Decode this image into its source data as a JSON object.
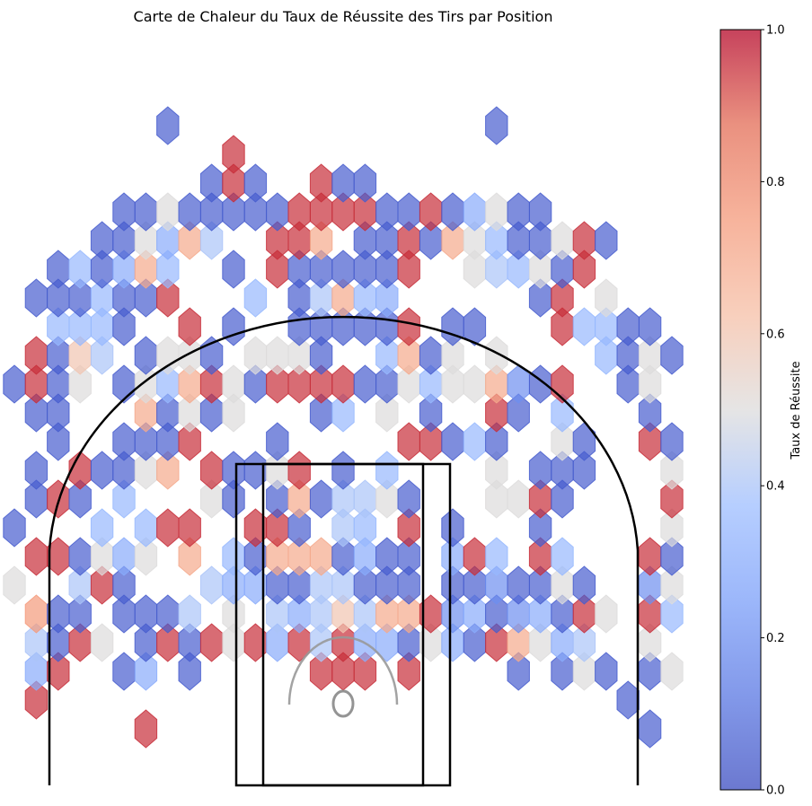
{
  "chart_data": {
    "type": "heatmap",
    "subtype": "hexbin",
    "title": "Carte de Chaleur du Taux de Réussite des Tirs par Position",
    "xlabel": "",
    "ylabel": "",
    "axes_visible": false,
    "grid": false,
    "colormap": "coolwarm",
    "colorbar": {
      "label": "Taux de Réussite",
      "range": [
        0,
        1
      ],
      "ticks": [
        "0.0",
        "0.2",
        "0.4",
        "0.6",
        "0.8",
        "1.0"
      ],
      "placement": "right"
    },
    "columns": [
      -15,
      -14,
      -13,
      -12,
      -11,
      -10,
      -9,
      -8,
      -7,
      -6,
      -5,
      -4,
      -3,
      -2,
      -1,
      0,
      1,
      2,
      3,
      4,
      5,
      6,
      7,
      8,
      9,
      10,
      11,
      12,
      13,
      14,
      15
    ],
    "rows": [
      {
        "y": 0,
        "v": [
          null,
          null,
          null,
          null,
          null,
          null,
          0.95,
          null,
          null,
          null,
          null,
          null,
          null,
          null,
          null,
          null,
          null,
          null,
          null,
          null,
          null,
          null,
          null,
          null,
          null,
          null,
          null,
          null,
          null,
          0.05,
          null
        ]
      },
      {
        "y": 1,
        "v": [
          null,
          0.95,
          null,
          null,
          null,
          null,
          null,
          null,
          null,
          null,
          null,
          null,
          null,
          null,
          null,
          null,
          null,
          null,
          null,
          null,
          null,
          null,
          null,
          null,
          null,
          null,
          null,
          null,
          0.05,
          null,
          null
        ]
      },
      {
        "y": 2,
        "v": [
          null,
          0.3,
          0.95,
          null,
          null,
          0.05,
          0.3,
          null,
          0.05,
          null,
          null,
          null,
          null,
          null,
          0.95,
          0.95,
          0.95,
          null,
          0.95,
          null,
          null,
          null,
          null,
          0.05,
          null,
          0.05,
          0.5,
          0.05,
          null,
          0.05,
          0.5
        ]
      },
      {
        "y": 3,
        "v": [
          null,
          0.4,
          0.05,
          0.95,
          0.5,
          null,
          0.05,
          0.95,
          0.05,
          0.95,
          0.5,
          0.95,
          0.3,
          0.95,
          0.4,
          0.95,
          0.3,
          0.3,
          0.05,
          0.5,
          0.3,
          0.05,
          0.95,
          0.7,
          0.5,
          0.3,
          0.4,
          null,
          null,
          0.5,
          null
        ]
      },
      {
        "y": 4,
        "v": [
          null,
          0.75,
          0.05,
          0.05,
          null,
          0.05,
          0.05,
          0.05,
          0.4,
          null,
          0.5,
          null,
          0.4,
          0.3,
          0.4,
          0.6,
          0.4,
          0.7,
          0.7,
          0.95,
          0.2,
          0.3,
          0.05,
          0.2,
          0.3,
          0.05,
          0.95,
          0.5,
          null,
          0.95,
          0.35
        ]
      },
      {
        "y": 5,
        "v": [
          0.5,
          null,
          null,
          0.4,
          0.95,
          0.05,
          null,
          null,
          null,
          0.4,
          0.3,
          0.3,
          0.05,
          0.05,
          0.4,
          0.4,
          0.05,
          0.05,
          0.05,
          null,
          0.05,
          0.05,
          0.2,
          0.05,
          0.05,
          0.5,
          0.05,
          null,
          null,
          0.2,
          0.5
        ]
      },
      {
        "y": 6,
        "v": [
          null,
          0.95,
          0.95,
          0.05,
          0.5,
          0.3,
          0.5,
          null,
          0.7,
          null,
          0.35,
          0.05,
          0.7,
          0.7,
          0.7,
          0.05,
          0.3,
          0.05,
          0.05,
          null,
          0.3,
          0.95,
          0.35,
          null,
          0.95,
          0.35,
          null,
          null,
          null,
          0.95,
          0.05
        ]
      },
      {
        "y": 7,
        "v": [
          0.05,
          null,
          null,
          null,
          0.35,
          null,
          0.35,
          0.95,
          0.95,
          null,
          null,
          0.95,
          0.95,
          0.05,
          null,
          0.4,
          0.35,
          null,
          0.95,
          null,
          0.05,
          null,
          null,
          null,
          0.05,
          null,
          null,
          null,
          null,
          null,
          0.5
        ]
      },
      {
        "y": 8,
        "v": [
          null,
          0.05,
          0.95,
          0.05,
          null,
          0.35,
          null,
          null,
          null,
          0.5,
          0.05,
          null,
          0.05,
          0.7,
          0.05,
          0.4,
          0.4,
          0.5,
          0.05,
          null,
          null,
          null,
          0.5,
          0.5,
          0.95,
          0.05,
          null,
          null,
          null,
          null,
          0.95
        ]
      },
      {
        "y": 9,
        "v": [
          null,
          0.05,
          null,
          0.95,
          0.05,
          0.05,
          0.5,
          0.7,
          null,
          0.95,
          0.05,
          0.05,
          0.5,
          0.95,
          null,
          0.05,
          null,
          0.35,
          null,
          null,
          null,
          null,
          0.5,
          null,
          0.05,
          0.05,
          0.05,
          null,
          null,
          null,
          0.5
        ]
      },
      {
        "y": 10,
        "v": [
          null,
          null,
          0.05,
          null,
          null,
          0.05,
          0.05,
          0.05,
          0.95,
          null,
          null,
          null,
          0.05,
          null,
          null,
          null,
          null,
          null,
          0.95,
          0.95,
          0.05,
          0.35,
          0.05,
          null,
          null,
          0.5,
          0.05,
          null,
          null,
          0.95,
          0.05
        ]
      },
      {
        "y": 11,
        "v": [
          null,
          0.05,
          0.05,
          null,
          null,
          null,
          0.7,
          0.05,
          0.5,
          0.05,
          0.5,
          null,
          null,
          null,
          0.05,
          0.35,
          null,
          0.5,
          null,
          0.05,
          null,
          null,
          0.95,
          0.05,
          null,
          0.35,
          null,
          null,
          null,
          0.05,
          null
        ]
      },
      {
        "y": 12,
        "v": [
          0.05,
          0.95,
          0.05,
          0.5,
          null,
          0.05,
          0.5,
          0.35,
          0.7,
          0.95,
          0.5,
          0.05,
          0.95,
          0.95,
          0.95,
          0.95,
          0.05,
          0.05,
          0.5,
          0.35,
          0.5,
          0.5,
          0.7,
          0.2,
          0.05,
          0.95,
          null,
          null,
          0.05,
          0.5,
          null
        ]
      },
      {
        "y": 13,
        "v": [
          null,
          0.95,
          0.05,
          0.6,
          0.4,
          null,
          0.05,
          0.5,
          0.5,
          0.05,
          null,
          0.5,
          0.5,
          0.5,
          0.05,
          null,
          null,
          0.35,
          0.7,
          0.05,
          0.5,
          null,
          0.5,
          null,
          null,
          null,
          null,
          0.35,
          0.05,
          0.5,
          0.05
        ]
      },
      {
        "y": 14,
        "v": [
          null,
          null,
          0.35,
          0.35,
          0.35,
          0.05,
          null,
          null,
          0.95,
          null,
          0.05,
          null,
          null,
          0.05,
          0.05,
          0.05,
          0.05,
          0.05,
          0.95,
          null,
          0.05,
          0.05,
          null,
          null,
          null,
          0.95,
          0.35,
          0.35,
          0.05,
          0.05,
          null
        ]
      },
      {
        "y": 15,
        "v": [
          null,
          0.05,
          0.05,
          0.05,
          0.35,
          0.05,
          0.05,
          0.95,
          null,
          null,
          null,
          0.35,
          null,
          0.05,
          0.4,
          0.7,
          0.35,
          0.3,
          null,
          null,
          null,
          null,
          null,
          null,
          0.05,
          0.95,
          null,
          0.5,
          null,
          null,
          null
        ]
      },
      {
        "y": 16,
        "v": [
          null,
          null,
          0.05,
          0.35,
          0.05,
          0.3,
          0.7,
          0.35,
          null,
          null,
          0.05,
          null,
          0.95,
          0.05,
          0.05,
          0.05,
          0.05,
          0.05,
          0.95,
          null,
          null,
          0.5,
          0.4,
          0.35,
          0.5,
          0.05,
          0.95,
          null,
          null,
          null,
          null
        ]
      },
      {
        "y": 17,
        "v": [
          null,
          null,
          null,
          null,
          0.05,
          0.05,
          0.5,
          0.3,
          0.7,
          0.4,
          null,
          null,
          0.95,
          0.95,
          0.7,
          null,
          0.05,
          0.05,
          0.95,
          0.05,
          0.7,
          0.5,
          0.35,
          0.05,
          0.05,
          0.5,
          0.95,
          0.05,
          null,
          null,
          null
        ]
      },
      {
        "y": 18,
        "v": [
          null,
          null,
          null,
          null,
          null,
          0.05,
          0.05,
          0.5,
          0.05,
          0.05,
          0.05,
          0.05,
          0.05,
          0.95,
          0.95,
          0.95,
          0.95,
          0.05,
          0.05,
          0.95,
          0.05,
          0.3,
          0.5,
          0.05,
          0.05,
          null,
          null,
          null,
          null,
          null,
          null
        ]
      },
      {
        "y": 19,
        "v": [
          null,
          null,
          null,
          null,
          null,
          null,
          null,
          null,
          null,
          0.05,
          0.95,
          0.05,
          null,
          null,
          0.95,
          0.05,
          0.05,
          null,
          null,
          null,
          null,
          null,
          null,
          null,
          null,
          null,
          null,
          null,
          null,
          null,
          null
        ]
      },
      {
        "y": 20,
        "v": [
          null,
          null,
          null,
          null,
          null,
          null,
          null,
          null,
          null,
          null,
          0.95,
          null,
          null,
          null,
          null,
          null,
          null,
          null,
          null,
          null,
          null,
          null,
          null,
          null,
          null,
          null,
          null,
          null,
          null,
          null,
          null
        ]
      },
      {
        "y": 21,
        "v": [
          null,
          null,
          null,
          null,
          null,
          null,
          null,
          0.05,
          null,
          null,
          null,
          null,
          null,
          null,
          null,
          null,
          null,
          null,
          null,
          null,
          null,
          null,
          0.05,
          null,
          null,
          null,
          null,
          null,
          null,
          null,
          null
        ]
      }
    ]
  }
}
